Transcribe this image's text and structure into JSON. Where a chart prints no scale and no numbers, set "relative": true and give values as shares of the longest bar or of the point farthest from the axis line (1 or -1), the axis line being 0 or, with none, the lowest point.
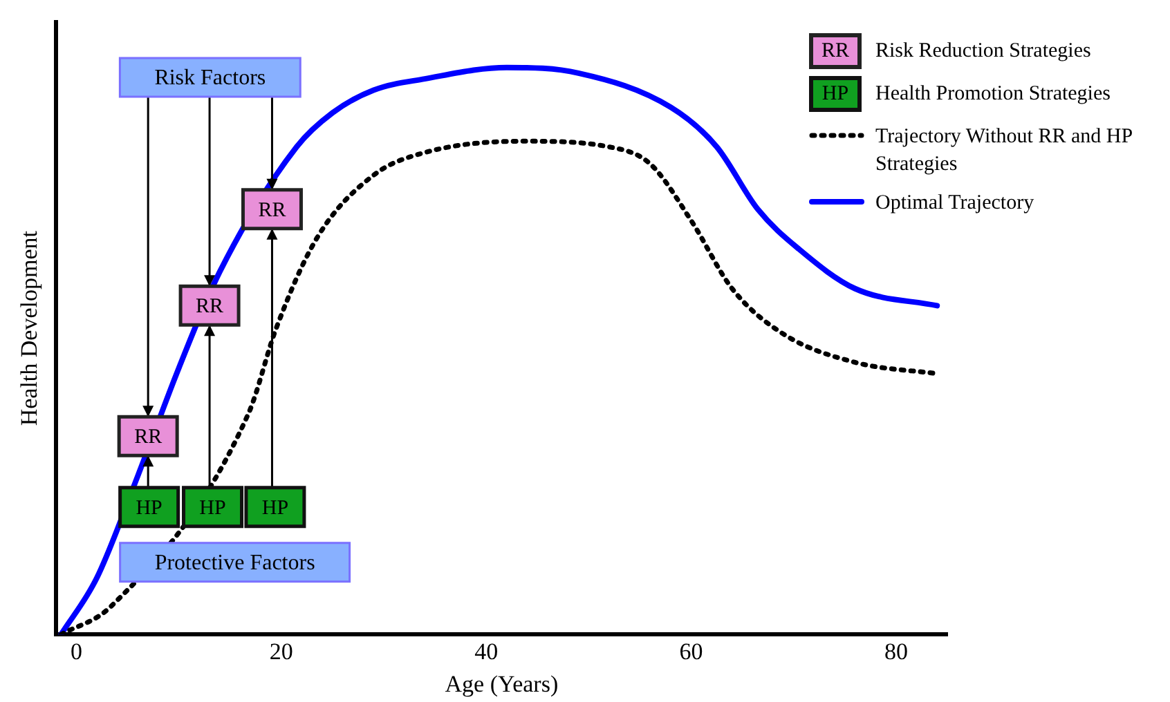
{
  "chart_data": {
    "type": "line",
    "xlabel": "Age (Years)",
    "ylabel": "Health Development",
    "relative": true,
    "xlim": [
      -2,
      85
    ],
    "xticks": [
      0,
      20,
      40,
      60,
      80
    ],
    "grid": false,
    "legend": "top right",
    "marker": "none",
    "series": [
      {
        "name": "Trajectory Without RR and HP Strategies",
        "color": "#000000",
        "line_style": "dotted",
        "x": [
          -1.5,
          3.4,
          7.4,
          12.8,
          16.8,
          19.5,
          23.5,
          29,
          34,
          43.7,
          52,
          56,
          60,
          64,
          69,
          76,
          84
        ],
        "values": [
          0,
          0.05,
          null,
          null,
          0.39,
          0.54,
          0.7,
          0.81,
          0.85,
          0.87,
          0.86,
          0.83,
          0.73,
          0.61,
          0.53,
          0.48,
          0.46
        ]
      },
      {
        "name": "Optimal Trajectory",
        "color": "#0000ff",
        "line_style": "solid",
        "x": [
          -1.5,
          2,
          6,
          10,
          14,
          18,
          21.5,
          25,
          29,
          34,
          42,
          49,
          58,
          62.5,
          66.5,
          70.5,
          76,
          84
        ],
        "values": [
          0,
          0.1,
          0.28,
          0.47,
          0.64,
          null,
          0.86,
          0.92,
          0.96,
          0.98,
          1,
          0.99,
          0.93,
          0.86,
          0.75,
          0.68,
          0.61,
          0.58
        ]
      }
    ],
    "annotations": [
      "Risk Factors",
      "Protective Factors",
      {
        "text": "RR",
        "x": 7,
        "y": 0.35
      },
      {
        "text": "RR",
        "x": 13,
        "y": 0.58
      },
      {
        "text": "RR",
        "x": 19.1,
        "y": 0.75
      },
      {
        "text": "HP",
        "x": 7.1,
        "y": 0.225
      },
      {
        "text": "HP",
        "x": 13.3,
        "y": 0.225
      },
      {
        "text": "HP",
        "x": 19.4,
        "y": 0.225
      },
      "RR",
      "Risk Reduction Strategies",
      "HP",
      "Health Promotion Strategies"
    ]
  }
}
